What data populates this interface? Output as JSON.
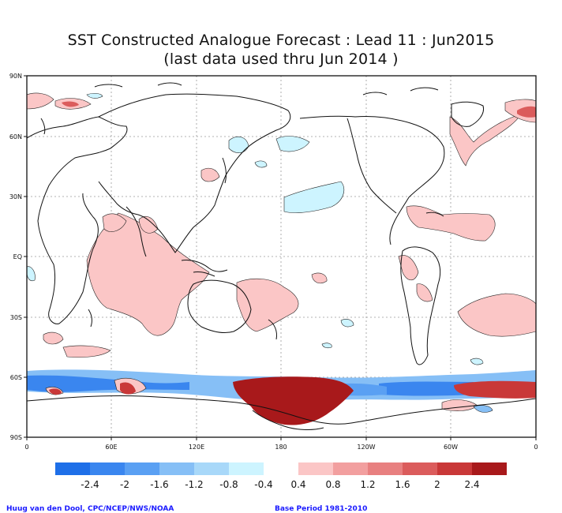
{
  "title": {
    "line1": "SST Constructed Analogue Forecast : Lead 11 : Jun2015",
    "line2": "(last data used thru Jun 2014 )"
  },
  "axes": {
    "lat_labels": [
      "90N",
      "60N",
      "30N",
      "EQ",
      "30S",
      "60S",
      "90S"
    ],
    "lon_labels": [
      "0",
      "60E",
      "120E",
      "180",
      "120W",
      "60W",
      "0"
    ]
  },
  "colorbar": {
    "labels": [
      "-2.4",
      "-2",
      "-1.6",
      "-1.2",
      "-0.8",
      "-0.4",
      "0.4",
      "0.8",
      "1.2",
      "1.6",
      "2",
      "2.4"
    ],
    "negative_colors": [
      "#1e6fe8",
      "#3a86ef",
      "#5aa0f3",
      "#86bff6",
      "#a8d8f9",
      "#cdf4ff"
    ],
    "positive_colors": [
      "#fbc6c6",
      "#f29f9f",
      "#e88080",
      "#db5c5c",
      "#c93838",
      "#a8191b"
    ]
  },
  "footer": {
    "credit": "Huug van den Dool, CPC/NCEP/NWS/NOAA",
    "base_period": "Base Period 1981-2010"
  }
}
